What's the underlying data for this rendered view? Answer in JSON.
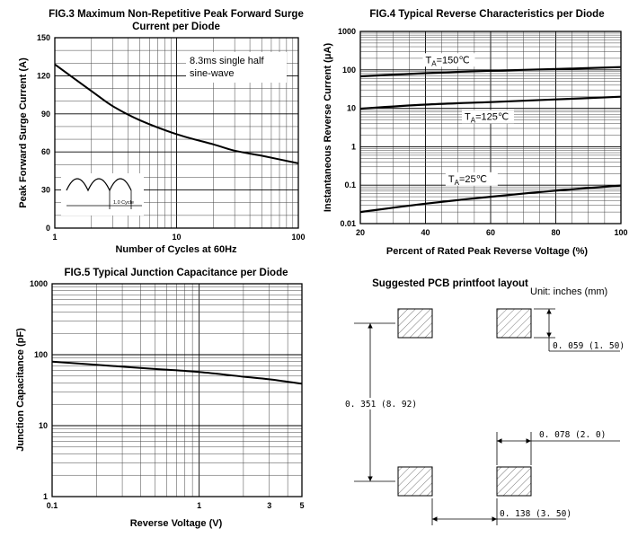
{
  "chart_data": [
    {
      "type": "line",
      "title_line1": "FIG.3 Maximum Non-Repetitive Peak Forward Surge",
      "title_line2": "Current per Diode",
      "xlabel": "Number of Cycles at 60Hz",
      "ylabel": "Peak Forward Surge Current (A)",
      "xscale": "log",
      "xlim": [
        1,
        100
      ],
      "ylim": [
        0,
        150
      ],
      "xticks": [
        1,
        10,
        100
      ],
      "xtick_labels": [
        "1",
        "10",
        "100"
      ],
      "yticks": [
        0,
        30,
        60,
        90,
        120,
        150
      ],
      "ytick_labels": [
        "0",
        "30",
        "60",
        "90",
        "120",
        "150"
      ],
      "annotation_line1": "8.3ms single half",
      "annotation_line2": "sine-wave",
      "inset_label": "1.0 Cycle",
      "series": [
        {
          "name": "surge",
          "x": [
            1,
            2,
            3,
            5,
            10,
            20,
            30,
            50,
            100
          ],
          "y": [
            129,
            108,
            96,
            85,
            74,
            66,
            61,
            57,
            51
          ]
        }
      ]
    },
    {
      "type": "line",
      "title": "FIG.4 Typical Reverse Characteristics per Diode",
      "xlabel": "Percent of Rated Peak Reverse Voltage (%)",
      "ylabel": "Instantaneous Reverse Current (μA)",
      "xlim": [
        20,
        100
      ],
      "yscale": "log",
      "ylim": [
        0.01,
        1000
      ],
      "xticks": [
        20,
        40,
        60,
        80,
        100
      ],
      "xtick_labels": [
        "20",
        "40",
        "60",
        "80",
        "100"
      ],
      "yticks": [
        0.01,
        0.1,
        1,
        10,
        100,
        1000
      ],
      "ytick_labels": [
        "0.01",
        "0.1",
        "1",
        "10",
        "100",
        "1000"
      ],
      "series": [
        {
          "name": "TA=150℃",
          "label_main": "T",
          "label_sub": "A",
          "label_rest": "=150℃",
          "label_x": 40,
          "label_y": 150,
          "x": [
            20,
            40,
            60,
            80,
            100
          ],
          "y": [
            68,
            82,
            95,
            105,
            118
          ]
        },
        {
          "name": "TA=125℃",
          "label_main": "T",
          "label_sub": "A",
          "label_rest": "=125℃",
          "label_x": 52,
          "label_y": 5,
          "x": [
            20,
            40,
            60,
            80,
            100
          ],
          "y": [
            9.8,
            12.5,
            14.5,
            17,
            20
          ]
        },
        {
          "name": "TA=25℃",
          "label_main": "T",
          "label_sub": "A",
          "label_rest": "=25℃",
          "label_x": 47,
          "label_y": 0.12,
          "x": [
            20,
            40,
            60,
            80,
            100
          ],
          "y": [
            0.02,
            0.033,
            0.05,
            0.072,
            0.098
          ]
        }
      ]
    },
    {
      "type": "line",
      "title": "FIG.5 Typical Junction Capacitance per Diode",
      "xlabel": "Reverse Voltage (V)",
      "ylabel": "Junction Capacitance (pF)",
      "xscale": "log",
      "xlim": [
        0.1,
        5
      ],
      "yscale": "log",
      "ylim": [
        1,
        1000
      ],
      "xticks": [
        0.1,
        1,
        3,
        5
      ],
      "xtick_labels": [
        "0.1",
        "1",
        "3",
        "5"
      ],
      "yticks": [
        1,
        10,
        100,
        1000
      ],
      "ytick_labels": [
        "1",
        "10",
        "100",
        "1000"
      ],
      "series": [
        {
          "name": "capacitance",
          "x": [
            0.1,
            0.2,
            0.5,
            1,
            2,
            3,
            5
          ],
          "y": [
            80,
            72,
            63,
            57,
            49,
            45,
            39
          ]
        }
      ]
    }
  ],
  "pcb": {
    "title": "Suggested PCB printfoot layout",
    "unit": "Unit: inches (mm)",
    "dim_pad": "0. 059 (1. 50)",
    "dim_height": "0. 351 (8. 92)",
    "dim_gap": "0. 078 (2. 0)",
    "dim_width": "0. 138 (3. 50)"
  }
}
